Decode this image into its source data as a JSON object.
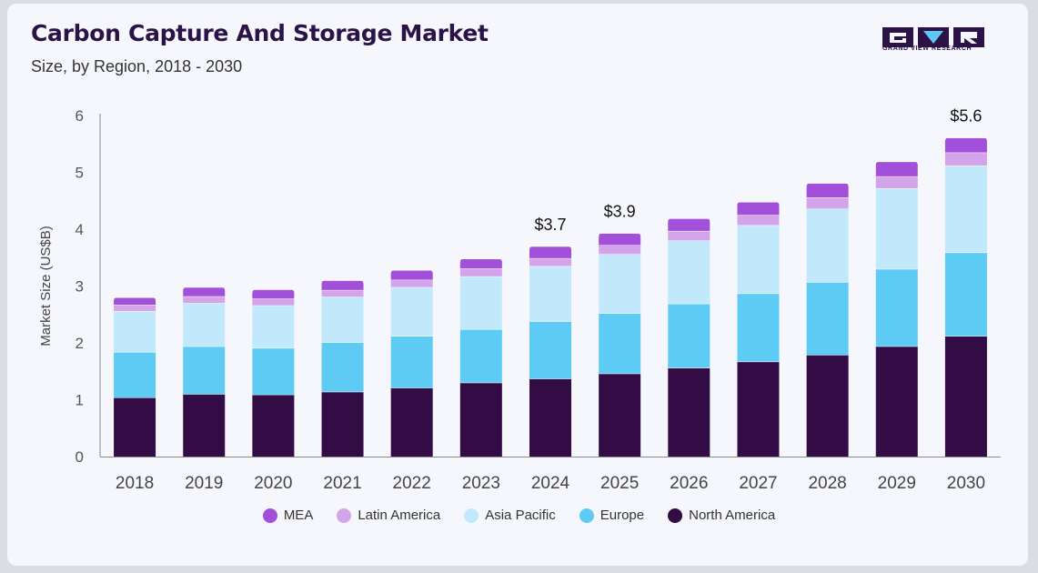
{
  "header": {
    "title": "Carbon Capture And Storage Market",
    "subtitle": "Size, by Region, 2018 - 2030"
  },
  "brand": {
    "name": "GRAND VIEW RESEARCH",
    "colors": {
      "dark": "#2b1347",
      "accent": "#5fc9f4",
      "purple": "#8a3fb8"
    }
  },
  "chart_data": {
    "type": "bar",
    "stacked": true,
    "categories": [
      "2018",
      "2019",
      "2020",
      "2021",
      "2022",
      "2023",
      "2024",
      "2025",
      "2026",
      "2027",
      "2028",
      "2029",
      "2030"
    ],
    "series": [
      {
        "name": "North America",
        "color": "#340c45",
        "values": [
          1.04,
          1.1,
          1.09,
          1.14,
          1.21,
          1.3,
          1.37,
          1.46,
          1.56,
          1.67,
          1.79,
          1.94,
          2.12
        ]
      },
      {
        "name": "Europe",
        "color": "#5ecbf4",
        "values": [
          0.8,
          0.84,
          0.82,
          0.87,
          0.91,
          0.94,
          1.01,
          1.06,
          1.13,
          1.2,
          1.28,
          1.36,
          1.47
        ]
      },
      {
        "name": "Asia Pacific",
        "color": "#c2e9fb",
        "values": [
          0.72,
          0.76,
          0.75,
          0.8,
          0.86,
          0.93,
          0.97,
          1.04,
          1.11,
          1.2,
          1.29,
          1.42,
          1.53
        ]
      },
      {
        "name": "Latin America",
        "color": "#d4a4eb",
        "values": [
          0.11,
          0.12,
          0.12,
          0.12,
          0.13,
          0.14,
          0.14,
          0.16,
          0.17,
          0.18,
          0.2,
          0.21,
          0.23
        ]
      },
      {
        "name": "MEA",
        "color": "#a24fd9",
        "values": [
          0.13,
          0.16,
          0.16,
          0.17,
          0.17,
          0.17,
          0.21,
          0.21,
          0.22,
          0.23,
          0.25,
          0.26,
          0.26
        ]
      }
    ],
    "legend_order": [
      "MEA",
      "Latin America",
      "Asia Pacific",
      "Europe",
      "North America"
    ],
    "annotations": [
      {
        "category": "2024",
        "label": "$3.7",
        "value": 3.7
      },
      {
        "category": "2025",
        "label": "$3.9",
        "value": 3.9
      },
      {
        "category": "2030",
        "label": "$5.6",
        "value": 5.6
      }
    ],
    "ylabel": "Market Size (US$B)",
    "xlabel": "",
    "ylim": [
      0,
      6
    ],
    "yticks": [
      "0",
      "1",
      "2",
      "3",
      "4",
      "5",
      "6"
    ],
    "grid": false,
    "legend_position": "bottom"
  }
}
